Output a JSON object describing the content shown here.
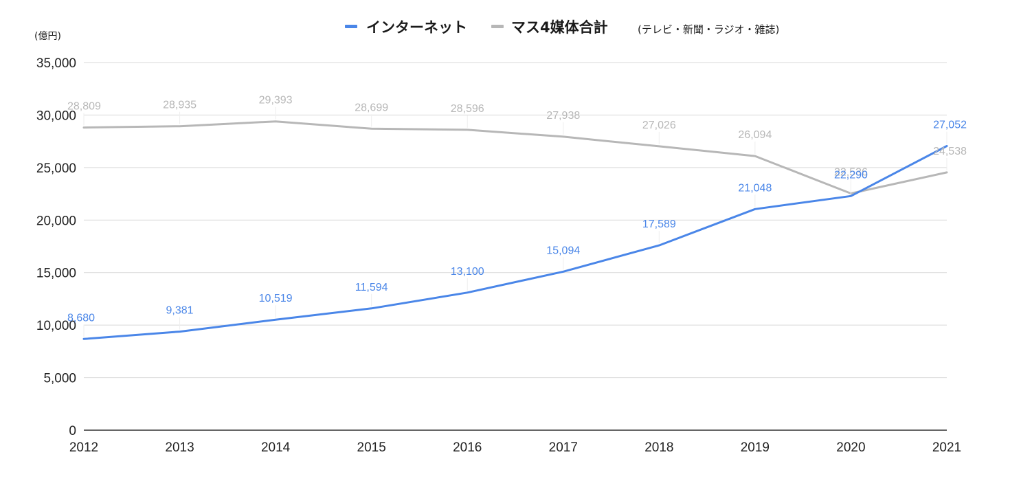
{
  "chart_data": {
    "type": "line",
    "unit_label": "(億円)",
    "categories": [
      "2012",
      "2013",
      "2014",
      "2015",
      "2016",
      "2017",
      "2018",
      "2019",
      "2020",
      "2021"
    ],
    "y_ticks": [
      "0",
      "5,000",
      "10,000",
      "15,000",
      "20,000",
      "25,000",
      "30,000",
      "35,000"
    ],
    "ylim": [
      0,
      35000
    ],
    "grid": true,
    "legend_position": "top",
    "series": [
      {
        "name": "インターネット",
        "color": "#4a86e8",
        "values": [
          8680,
          9381,
          10519,
          11594,
          13100,
          15094,
          17589,
          21048,
          22290,
          27052
        ],
        "labels": [
          "8,680",
          "9,381",
          "10,519",
          "11,594",
          "13,100",
          "15,094",
          "17,589",
          "21,048",
          "22,290",
          "27,052"
        ]
      },
      {
        "name": "マス4媒体合計",
        "name_note": "(テレビ・新聞・ラジオ・雑誌)",
        "color": "#b7b7b7",
        "values": [
          28809,
          28935,
          29393,
          28699,
          28596,
          27938,
          27026,
          26094,
          22536,
          24538
        ],
        "labels": [
          "28,809",
          "28,935",
          "29,393",
          "28,699",
          "28,596",
          "27,938",
          "27,026",
          "26,094",
          "22,536",
          "24,538"
        ]
      }
    ]
  }
}
